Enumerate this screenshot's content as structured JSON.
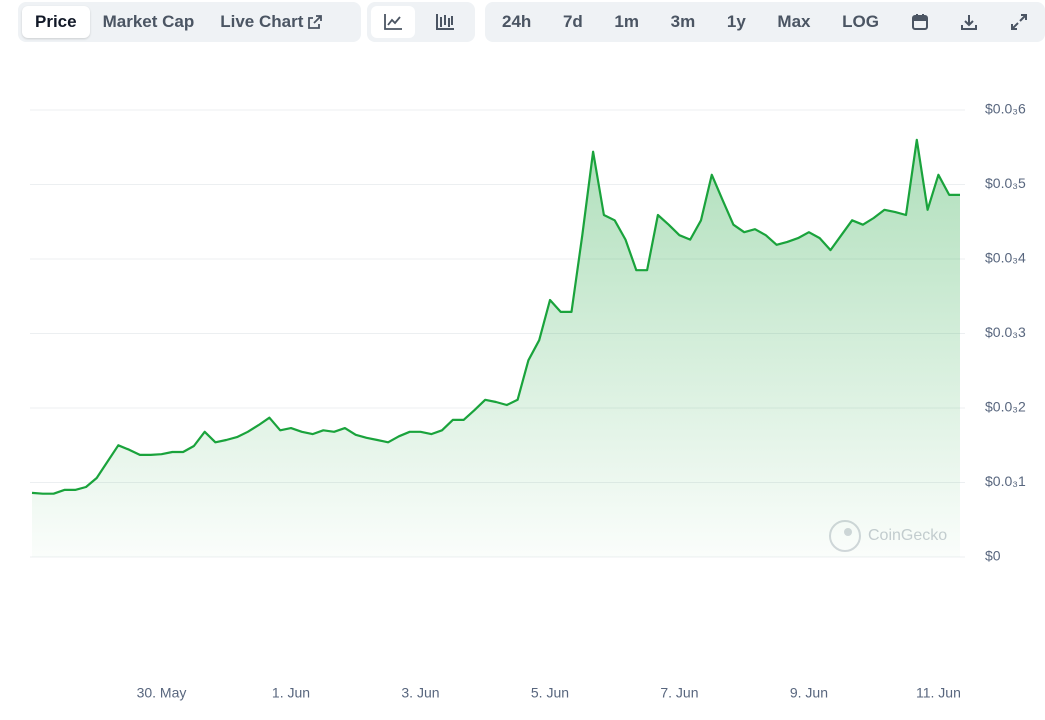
{
  "toolbar": {
    "tabs": [
      "Price",
      "Market Cap",
      "Live Chart"
    ],
    "ranges": [
      "24h",
      "7d",
      "1m",
      "3m",
      "1y",
      "Max",
      "LOG"
    ]
  },
  "watermark": "CoinGecko",
  "chart_data": {
    "type": "area",
    "color": "#1aa33c",
    "grid": true,
    "ylim": [
      0,
      0.0006
    ],
    "yticks": [
      {
        "value": 0,
        "label": "$0"
      },
      {
        "value": 0.0001,
        "label": "$0.0₃1"
      },
      {
        "value": 0.0002,
        "label": "$0.0₃2"
      },
      {
        "value": 0.0003,
        "label": "$0.0₃3"
      },
      {
        "value": 0.0004,
        "label": "$0.0₃4"
      },
      {
        "value": 0.0005,
        "label": "$0.0₃5"
      },
      {
        "value": 0.0006,
        "label": "$0.0₃6"
      }
    ],
    "categories": [
      null,
      null,
      null,
      null,
      null,
      null,
      null,
      null,
      null,
      null,
      null,
      null,
      "30. May",
      null,
      null,
      null,
      null,
      null,
      null,
      null,
      null,
      null,
      null,
      null,
      "1. Jun",
      null,
      null,
      null,
      null,
      null,
      null,
      null,
      null,
      null,
      null,
      null,
      "3. Jun",
      null,
      null,
      null,
      null,
      null,
      null,
      null,
      null,
      null,
      null,
      null,
      "5. Jun",
      null,
      null,
      null,
      null,
      null,
      null,
      null,
      null,
      null,
      null,
      null,
      "7. Jun",
      null,
      null,
      null,
      null,
      null,
      null,
      null,
      null,
      null,
      null,
      null,
      "9. Jun",
      null,
      null,
      null,
      null,
      null,
      null,
      null,
      null,
      null,
      null,
      null,
      "11. Jun",
      null,
      null
    ],
    "values": [
      8.6e-05,
      8.5e-05,
      8.5e-05,
      9e-05,
      9e-05,
      9.4e-05,
      0.000106,
      0.000128,
      0.00015,
      0.000144,
      0.000137,
      0.000137,
      0.000138,
      0.000141,
      0.000141,
      0.000149,
      0.000168,
      0.000154,
      0.000157,
      0.000161,
      0.000168,
      0.000177,
      0.000187,
      0.00017,
      0.000173,
      0.000168,
      0.000165,
      0.00017,
      0.000168,
      0.000173,
      0.000164,
      0.00016,
      0.000157,
      0.000154,
      0.000162,
      0.000168,
      0.000168,
      0.000165,
      0.00017,
      0.000184,
      0.000184,
      0.000197,
      0.000211,
      0.000208,
      0.000204,
      0.000211,
      0.000264,
      0.000291,
      0.000345,
      0.000329,
      0.000329,
      0.000432,
      0.000544,
      0.000459,
      0.000452,
      0.000426,
      0.000385,
      0.000385,
      0.000459,
      0.000446,
      0.000432,
      0.000426,
      0.000452,
      0.000513,
      0.000479,
      0.000446,
      0.000436,
      0.00044,
      0.000432,
      0.000419,
      0.000423,
      0.000428,
      0.000436,
      0.000428,
      0.000412,
      0.000432,
      0.000452,
      0.000446,
      0.000455,
      0.000466,
      0.000463,
      0.000459,
      0.00056,
      0.000466,
      0.000513,
      0.000486,
      0.000486
    ]
  }
}
